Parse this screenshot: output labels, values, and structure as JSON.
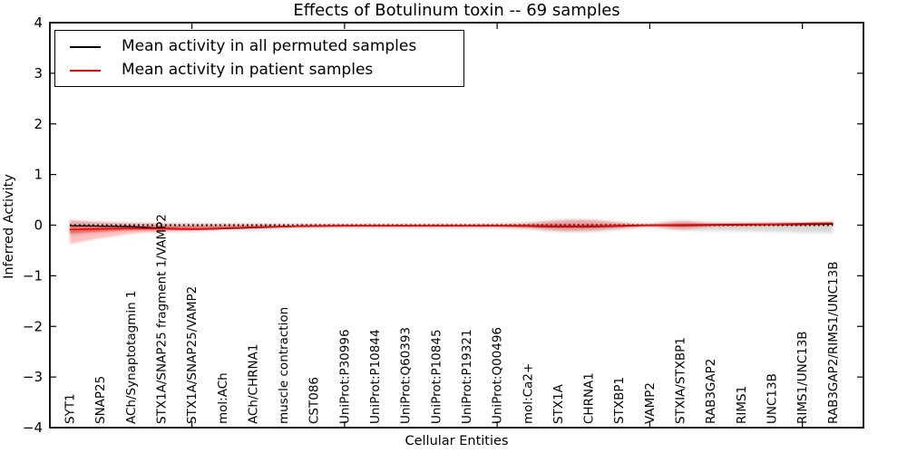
{
  "title": "Effects of Botulinum toxin -- 69 samples",
  "axes": {
    "ylabel": "Inferred Activity",
    "xlabel": "Cellular Entities",
    "y_tick_labels": [
      "4",
      "3",
      "2",
      "1",
      "0",
      "−1",
      "−2",
      "−3",
      "−4"
    ],
    "y_tick_values": [
      4,
      3,
      2,
      1,
      0,
      -1,
      -2,
      -3,
      -4
    ]
  },
  "legend": {
    "items": [
      {
        "label": "Mean activity in all permuted samples",
        "color": "#000000"
      },
      {
        "label": "Mean activity in patient samples",
        "color": "#ff0000"
      }
    ]
  },
  "chart_data": {
    "type": "line",
    "title": "Effects of Botulinum toxin -- 69 samples",
    "xlabel": "Cellular Entities",
    "ylabel": "Inferred Activity",
    "ylim": [
      -4,
      4
    ],
    "grid": false,
    "legend_position": "upper left",
    "x_major_tick_positions": [
      5,
      10,
      15,
      20,
      25
    ],
    "categories": [
      "SYT1",
      "SNAP25",
      "ACh/Synaptotagmin 1",
      "STX1A/SNAP25 fragment 1/VAMP2",
      "STX1A/SNAP25/VAMP2",
      "mol:ACh",
      "ACh/CHRNA1",
      "muscle contraction",
      "CST086",
      "UniProt:P30996",
      "UniProt:P10844",
      "UniProt:Q60393",
      "UniProt:P10845",
      "UniProt:P19321",
      "UniProt:Q00496",
      "mol:Ca2+",
      "STX1A",
      "CHRNA1",
      "STXBP1",
      "VAMP2",
      "STXIA/STXBP1",
      "RAB3GAP2",
      "RIMS1",
      "UNC13B",
      "RIMS1/UNC13B",
      "RAB3GAP2/RIMS1/UNC13B"
    ],
    "series": [
      {
        "name": "Mean activity in all permuted samples",
        "color": "#000000",
        "width": 1.3,
        "values": [
          -0.01,
          -0.02,
          -0.03,
          -0.06,
          -0.08,
          -0.07,
          -0.05,
          -0.03,
          -0.02,
          -0.015,
          -0.015,
          -0.015,
          -0.015,
          -0.015,
          -0.015,
          -0.02,
          -0.03,
          -0.03,
          -0.02,
          -0.005,
          -0.005,
          0.0,
          0.005,
          0.01,
          0.015,
          0.02
        ]
      },
      {
        "name": "Mean activity in patient samples",
        "color": "#ff0000",
        "width": 1.6,
        "values": [
          -0.09,
          -0.075,
          -0.065,
          -0.07,
          -0.08,
          -0.06,
          -0.04,
          -0.025,
          -0.015,
          -0.01,
          -0.01,
          -0.01,
          -0.01,
          -0.01,
          -0.01,
          -0.01,
          -0.02,
          -0.02,
          -0.01,
          0.0,
          0.005,
          0.01,
          0.015,
          0.02,
          0.03,
          0.04
        ]
      }
    ],
    "bands": [
      {
        "name": "permuted-band",
        "color": "#a8a8a8",
        "opacity": 0.42,
        "blur": 1.5,
        "upper": [
          0.1,
          0.06,
          0.04,
          0.03,
          0.025,
          0.02,
          0.02,
          0.02,
          0.02,
          0.02,
          0.02,
          0.02,
          0.02,
          0.02,
          0.025,
          0.05,
          0.1,
          0.1,
          0.06,
          0.03,
          0.08,
          0.05,
          0.05,
          0.05,
          0.05,
          0.05
        ],
        "lower": [
          -0.22,
          -0.14,
          -0.11,
          -0.13,
          -0.13,
          -0.1,
          -0.11,
          -0.07,
          -0.05,
          -0.045,
          -0.045,
          -0.045,
          -0.045,
          -0.05,
          -0.055,
          -0.08,
          -0.13,
          -0.13,
          -0.09,
          -0.05,
          -0.1,
          -0.11,
          -0.12,
          -0.13,
          -0.145,
          -0.155
        ]
      },
      {
        "name": "patient-band-outer",
        "color": "#ff2a2a",
        "opacity": 0.3,
        "blur": 1.1,
        "upper": [
          0.09,
          0.055,
          0.04,
          0.03,
          0.025,
          0.02,
          0.02,
          0.015,
          0.015,
          0.015,
          0.015,
          0.015,
          0.015,
          0.015,
          0.02,
          0.04,
          0.09,
          0.1,
          0.05,
          0.02,
          0.075,
          0.04,
          0.04,
          0.045,
          0.05,
          0.06
        ],
        "lower": [
          -0.37,
          -0.26,
          -0.17,
          -0.12,
          -0.1,
          -0.07,
          -0.05,
          -0.04,
          -0.035,
          -0.035,
          -0.035,
          -0.035,
          -0.035,
          -0.035,
          -0.04,
          -0.06,
          -0.11,
          -0.11,
          -0.07,
          -0.025,
          -0.08,
          -0.03,
          -0.02,
          -0.015,
          -0.01,
          0.0
        ]
      },
      {
        "name": "patient-band-inner",
        "color": "#e01f1f",
        "opacity": 0.45,
        "blur": 0.8,
        "upper": [
          -0.02,
          -0.02,
          -0.02,
          -0.02,
          -0.025,
          -0.02,
          -0.015,
          -0.01,
          -0.005,
          -0.005,
          -0.005,
          -0.005,
          -0.005,
          -0.005,
          -0.005,
          0.005,
          0.02,
          0.02,
          0.01,
          0.005,
          0.03,
          0.025,
          0.025,
          0.03,
          0.04,
          0.05
        ],
        "lower": [
          -0.16,
          -0.13,
          -0.1,
          -0.09,
          -0.09,
          -0.07,
          -0.05,
          -0.035,
          -0.03,
          -0.025,
          -0.025,
          -0.025,
          -0.025,
          -0.025,
          -0.025,
          -0.03,
          -0.06,
          -0.06,
          -0.03,
          -0.015,
          -0.03,
          -0.01,
          -0.005,
          0.0,
          0.005,
          0.01
        ]
      }
    ],
    "zero_line": {
      "value": 0,
      "style": "dotted",
      "color": "#000000"
    }
  }
}
